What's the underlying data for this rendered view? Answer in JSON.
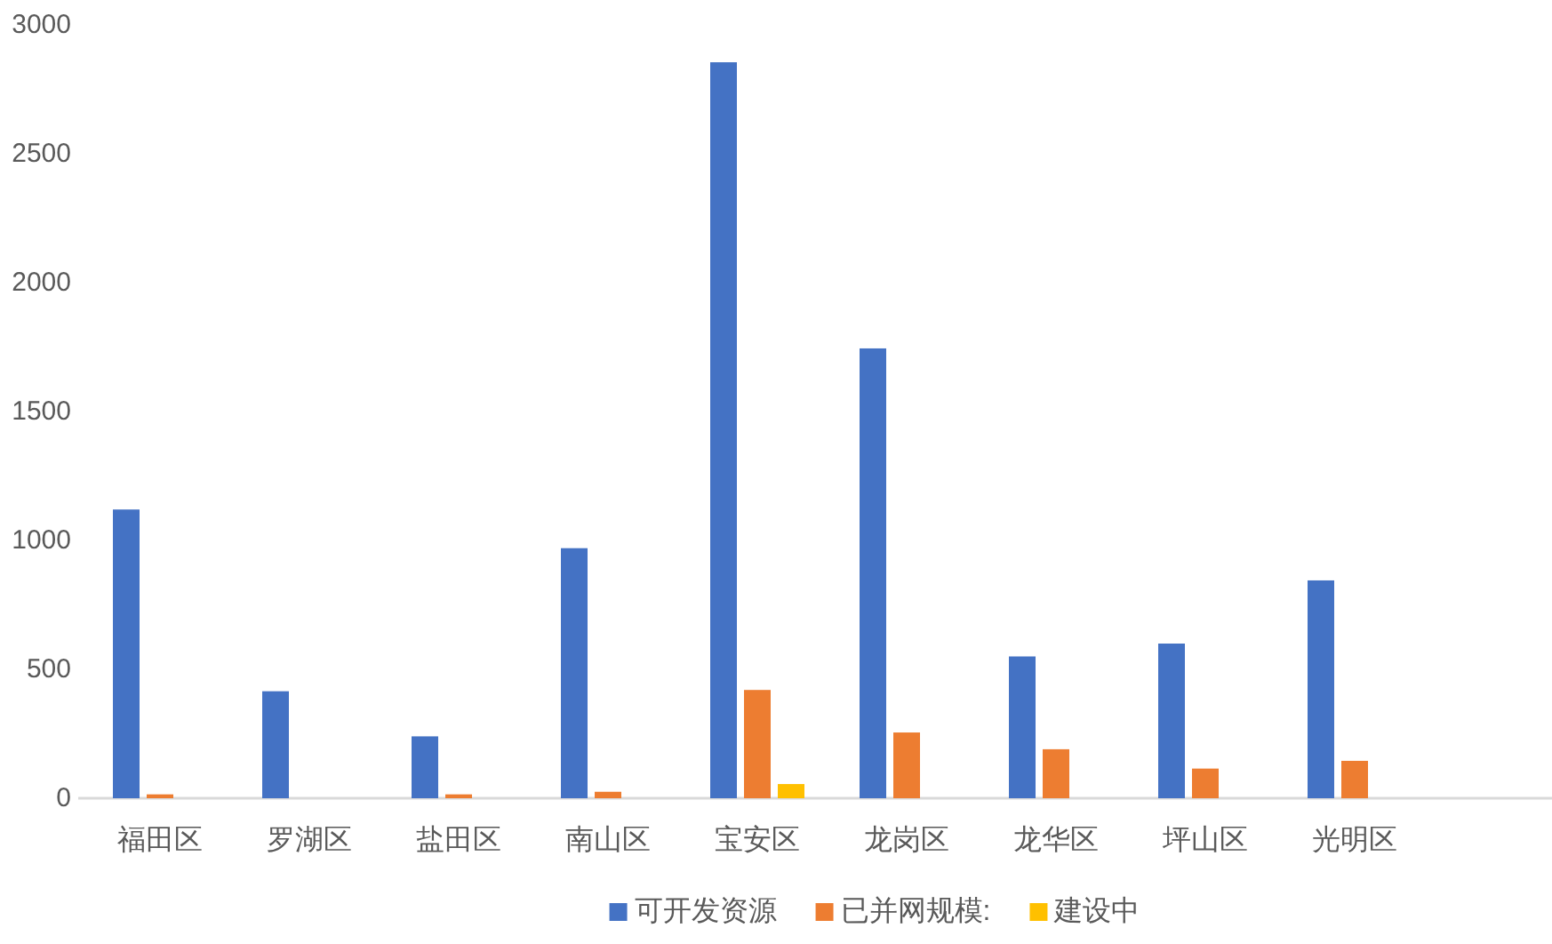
{
  "chart_data": {
    "type": "bar",
    "categories": [
      "福田区",
      "罗湖区",
      "盐田区",
      "南山区",
      "宝安区",
      "龙岗区",
      "龙华区",
      "坪山区",
      "光明区"
    ],
    "series": [
      {
        "name": "可开发资源",
        "color": "#4472c4",
        "values": [
          1120,
          415,
          240,
          970,
          2855,
          1745,
          550,
          600,
          845
        ]
      },
      {
        "name": "已并网规模:",
        "color": "#ed7d31",
        "values": [
          15,
          null,
          15,
          25,
          420,
          255,
          190,
          115,
          145
        ]
      },
      {
        "name": "建设中",
        "color": "#ffc000",
        "values": [
          null,
          null,
          null,
          null,
          55,
          null,
          null,
          null,
          null
        ]
      }
    ],
    "ylim": [
      0,
      3000
    ],
    "yticks": [
      0,
      500,
      1000,
      1500,
      2000,
      2500,
      3000
    ],
    "legend": "bottom"
  }
}
